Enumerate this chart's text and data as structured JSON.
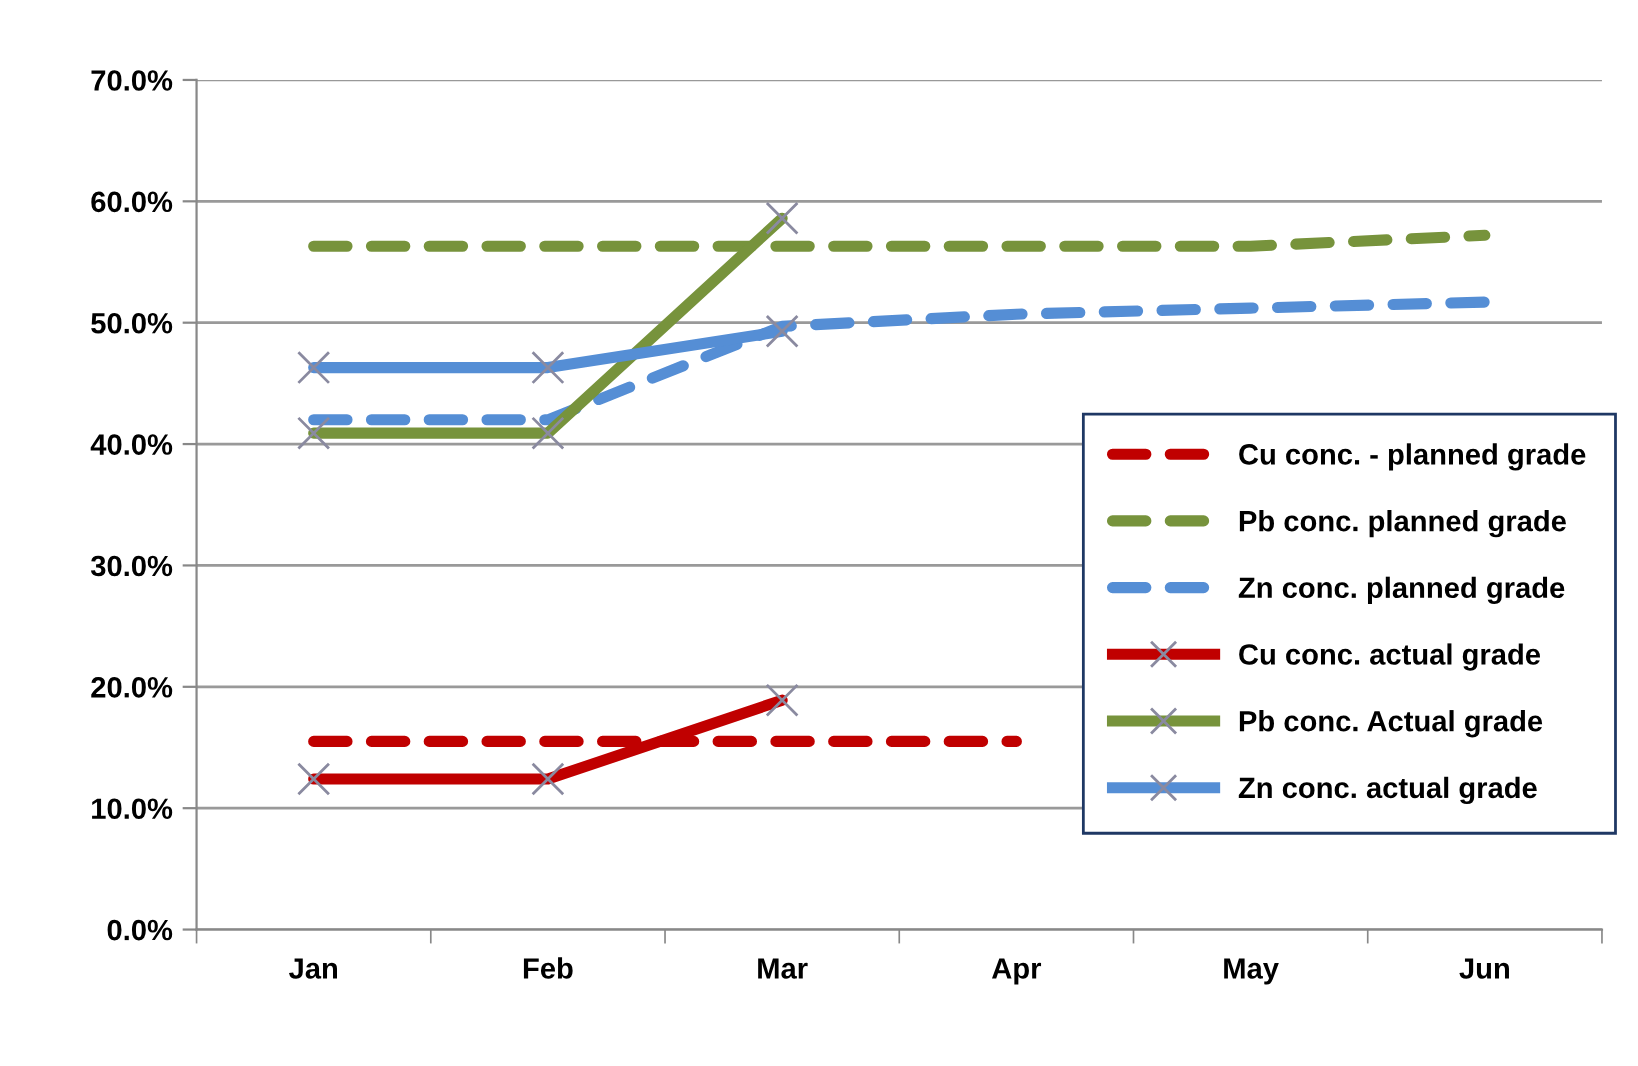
{
  "chart_data": {
    "type": "line",
    "categories": [
      "Jan",
      "Feb",
      "Mar",
      "Apr",
      "May",
      "Jun"
    ],
    "series": [
      {
        "name": "Cu conc. - planned grade",
        "color": "#c00000",
        "line_style": "dashed",
        "marker": "none",
        "values": [
          15.5,
          15.5,
          15.5,
          15.5,
          null,
          null
        ]
      },
      {
        "name": "Pb conc. planned grade",
        "color": "#77933c",
        "line_style": "dashed",
        "marker": "none",
        "values": [
          56.3,
          56.3,
          56.3,
          56.3,
          56.3,
          57.2
        ]
      },
      {
        "name": "Zn conc. planned grade",
        "color": "#558ed5",
        "line_style": "dashed",
        "marker": "none",
        "values": [
          42.0,
          42.0,
          49.7,
          50.7,
          51.2,
          51.7
        ]
      },
      {
        "name": "Cu conc. actual grade",
        "color": "#c00000",
        "line_style": "solid",
        "marker": "cross",
        "values": [
          12.4,
          12.4,
          18.9,
          null,
          null,
          null
        ]
      },
      {
        "name": "Pb conc. Actual grade",
        "color": "#77933c",
        "line_style": "solid",
        "marker": "cross",
        "values": [
          40.9,
          40.9,
          58.6,
          null,
          null,
          null
        ]
      },
      {
        "name": "Zn conc. actual grade",
        "color": "#558ed5",
        "line_style": "solid",
        "marker": "cross",
        "values": [
          46.3,
          46.3,
          49.3,
          null,
          null,
          null
        ]
      }
    ],
    "ylim": [
      0,
      70
    ],
    "yticks": [
      {
        "value": 0,
        "label": "0.0%"
      },
      {
        "value": 10,
        "label": "10.0%"
      },
      {
        "value": 20,
        "label": "20.0%"
      },
      {
        "value": 30,
        "label": "30.0%"
      },
      {
        "value": 40,
        "label": "40.0%"
      },
      {
        "value": 50,
        "label": "50.0%"
      },
      {
        "value": 60,
        "label": "60.0%"
      },
      {
        "value": 70,
        "label": "70.0%"
      }
    ],
    "grid": "y",
    "legend": "right"
  }
}
